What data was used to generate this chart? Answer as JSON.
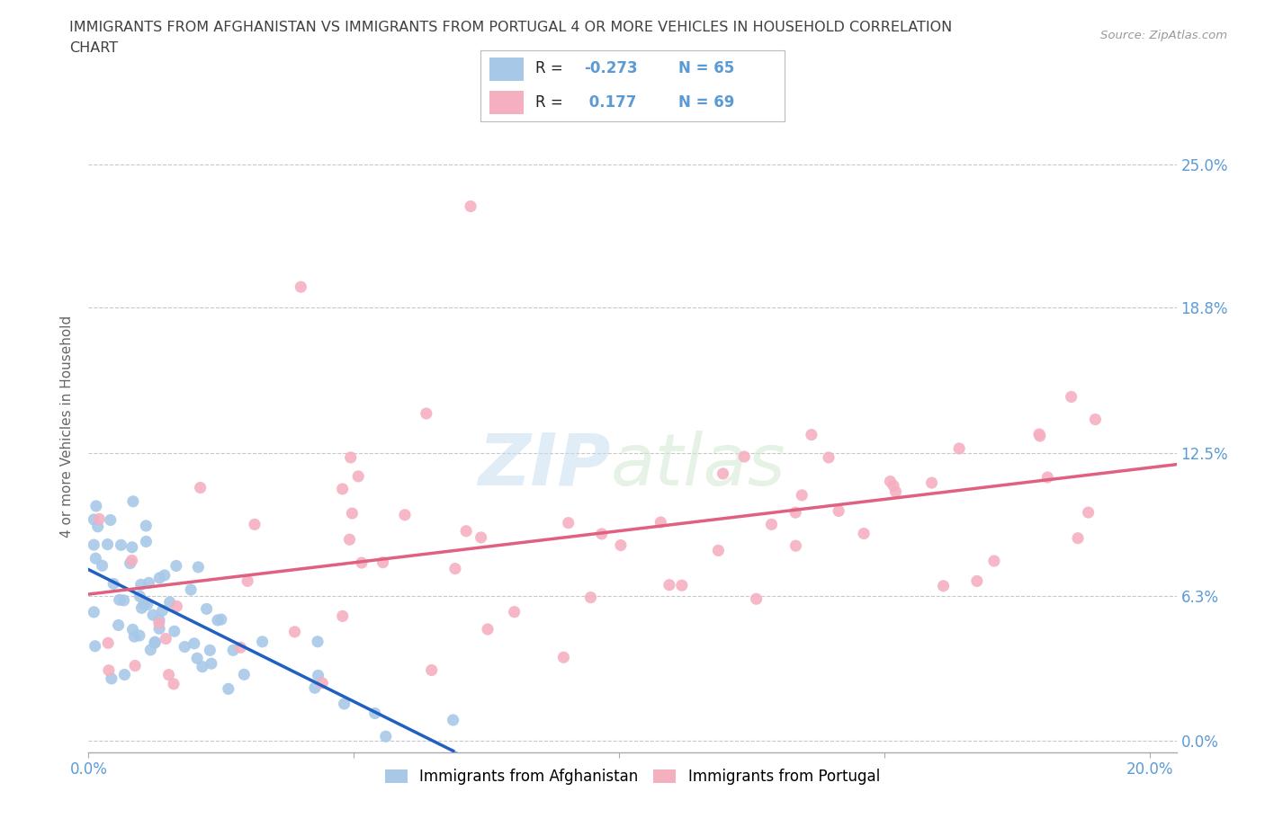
{
  "title_line1": "IMMIGRANTS FROM AFGHANISTAN VS IMMIGRANTS FROM PORTUGAL 4 OR MORE VEHICLES IN HOUSEHOLD CORRELATION",
  "title_line2": "CHART",
  "source": "Source: ZipAtlas.com",
  "ylabel": "4 or more Vehicles in Household",
  "xlim": [
    0.0,
    0.205
  ],
  "ylim": [
    -0.005,
    0.278
  ],
  "yticks": [
    0.0,
    0.063,
    0.125,
    0.188,
    0.25
  ],
  "ytick_labels": [
    "0.0%",
    "6.3%",
    "12.5%",
    "18.8%",
    "25.0%"
  ],
  "xticks": [
    0.0,
    0.05,
    0.1,
    0.15,
    0.2
  ],
  "xtick_labels": [
    "0.0%",
    "",
    "",
    "",
    "20.0%"
  ],
  "afghanistan_color": "#a8c8e8",
  "portugal_color": "#f5b0c0",
  "afghanistan_line_color": "#2060c0",
  "portugal_line_color": "#e06080",
  "watermark_zip": "ZIP",
  "watermark_atlas": "atlas",
  "legend_label_afghanistan": "Immigrants from Afghanistan",
  "legend_label_portugal": "Immigrants from Portugal",
  "background_color": "#ffffff",
  "grid_color": "#c8c8c8",
  "title_color": "#404040",
  "axis_label_color": "#5b9bd5",
  "tick_label_color": "#5b9bd5"
}
